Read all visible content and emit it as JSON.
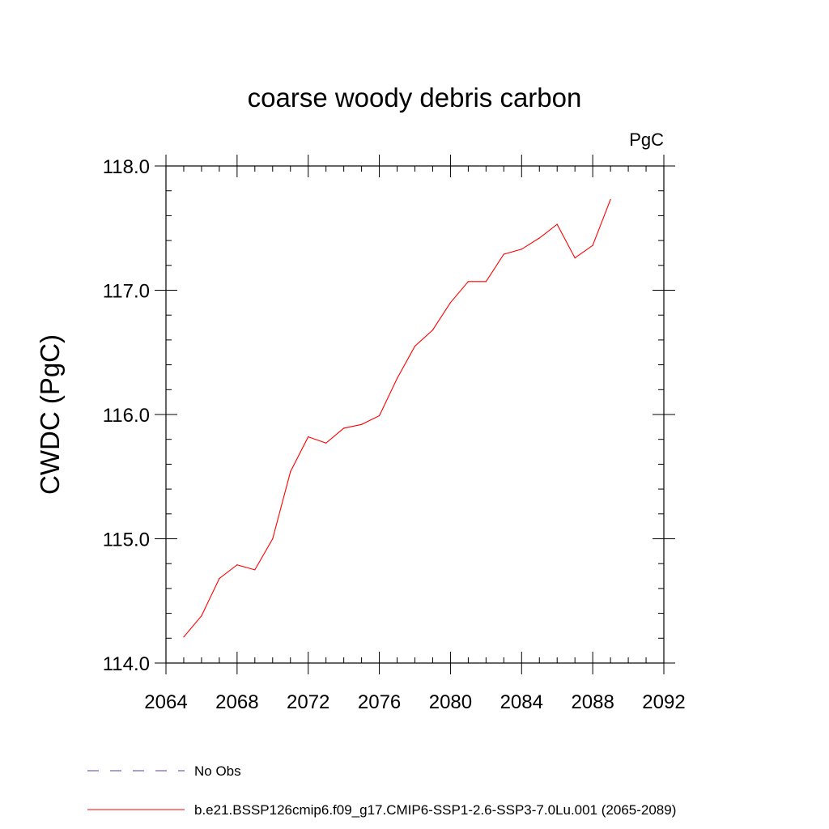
{
  "chart_data": {
    "type": "line",
    "title": "coarse woody debris carbon",
    "units": "PgC",
    "ylabel": "CWDC  (PgC)",
    "xlabel": "",
    "xlim": [
      2064,
      2092
    ],
    "ylim": [
      114.0,
      118.0
    ],
    "x_ticks": [
      "2064",
      "2068",
      "2072",
      "2076",
      "2080",
      "2084",
      "2088",
      "2092"
    ],
    "y_ticks": [
      "114.0",
      "115.0",
      "116.0",
      "117.0",
      "118.0"
    ],
    "grid": false,
    "series": [
      {
        "name": "b.e21.BSSP126cmip6.f09_g17.CMIP6-SSP1-2.6-SSP3-7.0Lu.001 (2065-2089)",
        "color": "#ff0000",
        "x": [
          2065,
          2066,
          2067,
          2068,
          2069,
          2070,
          2071,
          2072,
          2073,
          2074,
          2075,
          2076,
          2077,
          2078,
          2079,
          2080,
          2081,
          2082,
          2083,
          2084,
          2085,
          2086,
          2087,
          2088,
          2089
        ],
        "values": [
          114.21,
          114.38,
          114.68,
          114.79,
          114.75,
          115.0,
          115.54,
          115.82,
          115.77,
          115.89,
          115.92,
          115.99,
          116.29,
          116.55,
          116.68,
          116.9,
          117.07,
          117.07,
          117.29,
          117.33,
          117.42,
          117.53,
          117.26,
          117.36,
          117.73
        ]
      }
    ],
    "legend": [
      {
        "label": "No Obs",
        "color": "#5a3ca0",
        "style": "dashed"
      },
      {
        "label": "b.e21.BSSP126cmip6.f09_g17.CMIP6-SSP1-2.6-SSP3-7.0Lu.001 (2065-2089)",
        "color": "#ff0000",
        "style": "solid"
      }
    ],
    "legend_position": "bottom"
  }
}
